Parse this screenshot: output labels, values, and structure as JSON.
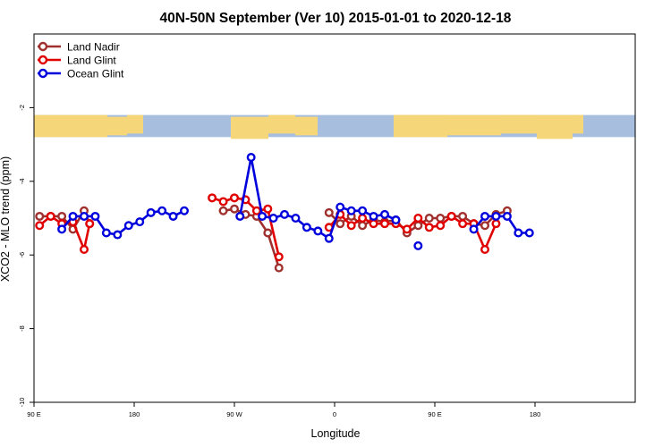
{
  "chart_data": {
    "type": "line",
    "title": "40N-50N September (Ver 10)   2015-01-01 to 2020-12-18",
    "xlabel": "Longitude",
    "ylabel": "XCO2 - MLO trend (ppm)",
    "xlim": [
      0,
      540
    ],
    "ylim": [
      -10,
      0
    ],
    "x_ticks": [
      {
        "value": 0,
        "label": "90 E"
      },
      {
        "value": 90,
        "label": "180"
      },
      {
        "value": 180,
        "label": "90 W"
      },
      {
        "value": 270,
        "label": "0"
      },
      {
        "value": 360,
        "label": "90 E"
      },
      {
        "value": 450,
        "label": "180"
      }
    ],
    "y_ticks": [
      {
        "value": -2,
        "label": "-2"
      },
      {
        "value": -4,
        "label": "-4"
      },
      {
        "value": -6,
        "label": "-6"
      },
      {
        "value": -8,
        "label": "-8"
      },
      {
        "value": -10,
        "label": "-10"
      }
    ],
    "legend_position": "top-left",
    "map_strip": {
      "y_top": -2.2,
      "y_bottom": -2.8,
      "land_color": "#f5d77a",
      "ocean_color": "#a8bedf"
    },
    "series": [
      {
        "name": "Land Nadir",
        "color": "#a0302e",
        "segments": [
          [
            [
              5,
              -4.95
            ],
            [
              15,
              -4.95
            ],
            [
              25,
              -4.95
            ],
            [
              35,
              -5.3
            ],
            [
              45,
              -4.8
            ],
            [
              50,
              -5.15
            ]
          ],
          [
            [
              170,
              -4.8
            ],
            [
              180,
              -4.75
            ],
            [
              190,
              -4.9
            ],
            [
              200,
              -4.95
            ],
            [
              210,
              -5.4
            ],
            [
              220,
              -6.35
            ]
          ],
          [
            [
              265,
              -4.85
            ],
            [
              275,
              -5.15
            ],
            [
              285,
              -4.95
            ],
            [
              295,
              -5.2
            ],
            [
              305,
              -5.05
            ],
            [
              315,
              -5.1
            ],
            [
              325,
              -5.05
            ],
            [
              335,
              -5.4
            ],
            [
              345,
              -5.2
            ],
            [
              355,
              -5.0
            ],
            [
              365,
              -5.0
            ],
            [
              375,
              -4.95
            ],
            [
              385,
              -4.95
            ],
            [
              395,
              -5.15
            ],
            [
              405,
              -5.2
            ],
            [
              415,
              -4.9
            ],
            [
              425,
              -4.8
            ]
          ]
        ]
      },
      {
        "name": "Land Glint",
        "color": "#e00000",
        "segments": [
          [
            [
              5,
              -5.2
            ],
            [
              15,
              -4.95
            ],
            [
              25,
              -5.15
            ],
            [
              35,
              -5.1
            ],
            [
              45,
              -5.85
            ],
            [
              50,
              -5.15
            ]
          ],
          [
            [
              160,
              -4.45
            ],
            [
              170,
              -4.55
            ],
            [
              180,
              -4.45
            ],
            [
              190,
              -4.5
            ],
            [
              200,
              -4.8
            ],
            [
              210,
              -4.75
            ],
            [
              220,
              -6.05
            ]
          ],
          [
            [
              265,
              -5.25
            ],
            [
              275,
              -4.9
            ],
            [
              285,
              -5.2
            ],
            [
              295,
              -5.0
            ],
            [
              305,
              -5.15
            ],
            [
              315,
              -5.15
            ],
            [
              325,
              -5.15
            ],
            [
              335,
              -5.3
            ],
            [
              345,
              -5.0
            ],
            [
              355,
              -5.25
            ],
            [
              365,
              -5.2
            ],
            [
              375,
              -4.95
            ],
            [
              385,
              -5.15
            ],
            [
              395,
              -5.15
            ],
            [
              405,
              -5.85
            ],
            [
              415,
              -5.15
            ]
          ]
        ]
      },
      {
        "name": "Ocean Glint",
        "color": "#0000dd",
        "segments": [
          [
            [
              25,
              -5.3
            ],
            [
              35,
              -4.95
            ],
            [
              45,
              -4.95
            ],
            [
              55,
              -4.95
            ],
            [
              65,
              -5.4
            ],
            [
              75,
              -5.45
            ],
            [
              85,
              -5.2
            ],
            [
              95,
              -5.1
            ],
            [
              105,
              -4.85
            ],
            [
              115,
              -4.8
            ],
            [
              125,
              -4.95
            ],
            [
              135,
              -4.8
            ]
          ],
          [
            [
              185,
              -4.95
            ],
            [
              195,
              -3.35
            ],
            [
              205,
              -4.95
            ],
            [
              215,
              -5.0
            ],
            [
              225,
              -4.9
            ],
            [
              235,
              -5.0
            ],
            [
              245,
              -5.25
            ],
            [
              255,
              -5.35
            ],
            [
              265,
              -5.55
            ],
            [
              275,
              -4.7
            ],
            [
              285,
              -4.8
            ],
            [
              295,
              -4.8
            ],
            [
              305,
              -4.95
            ],
            [
              315,
              -4.9
            ],
            [
              325,
              -5.05
            ]
          ],
          [
            [
              345,
              -5.75
            ]
          ],
          [
            [
              395,
              -5.3
            ],
            [
              405,
              -4.95
            ],
            [
              415,
              -4.95
            ],
            [
              425,
              -4.95
            ],
            [
              435,
              -5.4
            ],
            [
              445,
              -5.4
            ]
          ]
        ]
      }
    ]
  }
}
